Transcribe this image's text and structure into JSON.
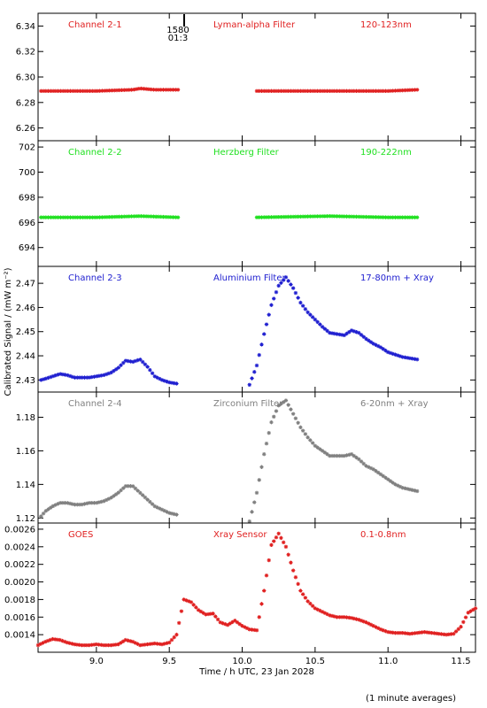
{
  "ylabel": "Calibrated Signal / (mW m⁻²)",
  "xlabel": "Time / h UTC, 23 Jan 2028",
  "footnote": "(1 minute averages)",
  "marker": {
    "top": "1580",
    "bottom": "01:3",
    "x": 9.6
  },
  "chart_data": {
    "type": "scatter",
    "xlim": [
      8.6,
      11.6
    ],
    "xticks": [
      9.0,
      9.5,
      10.0,
      10.5,
      11.0,
      11.5
    ],
    "xtick_labels": [
      "9.0",
      "9.5",
      "10.0",
      "10.5",
      "11.0",
      "11.5"
    ],
    "panels": [
      {
        "name": "Channel 2-1",
        "filter": "Lyman-alpha Filter",
        "band": "120-123nm",
        "color": "#e02020",
        "ylim": [
          6.25,
          6.35
        ],
        "yticks": [
          "6.26",
          "6.28",
          "6.30",
          "6.32",
          "6.34"
        ],
        "series": [
          {
            "x": [
              8.62,
              9.0,
              9.25,
              9.3,
              9.4,
              9.56
            ],
            "y": [
              6.289,
              6.289,
              6.29,
              6.291,
              6.29,
              6.29
            ]
          },
          {
            "x": [
              10.1,
              10.5,
              11.0,
              11.2
            ],
            "y": [
              6.289,
              6.289,
              6.289,
              6.29
            ]
          }
        ]
      },
      {
        "name": "Channel 2-2",
        "filter": "Herzberg Filter",
        "band": "190-222nm",
        "color": "#20e020",
        "ylim": [
          692.5,
          702.5
        ],
        "yticks": [
          "694",
          "696",
          "698",
          "700",
          "702"
        ],
        "series": [
          {
            "x": [
              8.62,
              9.0,
              9.3,
              9.56
            ],
            "y": [
              696.4,
              696.4,
              696.5,
              696.4
            ]
          },
          {
            "x": [
              10.1,
              10.6,
              11.0,
              11.2
            ],
            "y": [
              696.4,
              696.5,
              696.4,
              696.4
            ]
          }
        ]
      },
      {
        "name": "Channel 2-3",
        "filter": "Aluminium Filter",
        "band": "17-80nm + Xray",
        "color": "#2020d0",
        "ylim": [
          2.425,
          2.477
        ],
        "yticks": [
          "2.43",
          "2.44",
          "2.45",
          "2.46",
          "2.47"
        ],
        "series": [
          {
            "x": [
              8.62,
              8.65,
              8.7,
              8.75,
              8.8,
              8.85,
              8.9,
              8.95,
              9.0,
              9.05,
              9.1,
              9.15,
              9.2,
              9.25,
              9.3,
              9.35,
              9.4,
              9.45,
              9.5,
              9.55
            ],
            "y": [
              2.43,
              2.4305,
              2.4315,
              2.4325,
              2.432,
              2.431,
              2.431,
              2.431,
              2.4315,
              2.432,
              2.433,
              2.435,
              2.438,
              2.4375,
              2.4385,
              2.4355,
              2.4315,
              2.43,
              2.429,
              2.4285
            ]
          },
          {
            "x": [
              10.05,
              10.1,
              10.15,
              10.2,
              10.25,
              10.3,
              10.35,
              10.4,
              10.45,
              10.5,
              10.55,
              10.6,
              10.65,
              10.7,
              10.75,
              10.8,
              10.85,
              10.9,
              10.95,
              11.0,
              11.05,
              11.1,
              11.15,
              11.2
            ],
            "y": [
              2.428,
              2.436,
              2.449,
              2.461,
              2.469,
              2.4725,
              2.468,
              2.462,
              2.458,
              2.455,
              2.452,
              2.4495,
              2.449,
              2.4485,
              2.4505,
              2.4495,
              2.447,
              2.445,
              2.4435,
              2.4415,
              2.4405,
              2.4395,
              2.439,
              2.4385
            ]
          }
        ]
      },
      {
        "name": "Channel 2-4",
        "filter": "Zirconium Filter",
        "band": "6-20nm + Xray",
        "color": "#808080",
        "ylim": [
          1.117,
          1.195
        ],
        "yticks": [
          "1.12",
          "1.14",
          "1.16",
          "1.18"
        ],
        "series": [
          {
            "x": [
              8.62,
              8.65,
              8.7,
              8.75,
              8.8,
              8.85,
              8.9,
              8.95,
              9.0,
              9.05,
              9.1,
              9.15,
              9.2,
              9.25,
              9.3,
              9.35,
              9.4,
              9.45,
              9.5,
              9.55
            ],
            "y": [
              1.121,
              1.124,
              1.127,
              1.129,
              1.129,
              1.128,
              1.128,
              1.129,
              1.129,
              1.13,
              1.132,
              1.135,
              1.139,
              1.139,
              1.135,
              1.131,
              1.127,
              1.125,
              1.123,
              1.122
            ]
          },
          {
            "x": [
              10.05,
              10.1,
              10.15,
              10.2,
              10.25,
              10.3,
              10.35,
              10.4,
              10.45,
              10.5,
              10.55,
              10.6,
              10.65,
              10.7,
              10.75,
              10.8,
              10.85,
              10.9,
              10.95,
              11.0,
              11.05,
              11.1,
              11.15,
              11.2
            ],
            "y": [
              1.118,
              1.135,
              1.158,
              1.177,
              1.187,
              1.19,
              1.182,
              1.174,
              1.168,
              1.163,
              1.16,
              1.157,
              1.157,
              1.157,
              1.158,
              1.155,
              1.151,
              1.149,
              1.146,
              1.143,
              1.14,
              1.138,
              1.137,
              1.136
            ]
          }
        ]
      },
      {
        "name": "GOES",
        "filter": "Xray Sensor",
        "band": "0.1-0.8nm",
        "color": "#e02020",
        "ylim": [
          0.0012,
          0.00267
        ],
        "yticks": [
          "0.0014",
          "0.0016",
          "0.0018",
          "0.0020",
          "0.0022",
          "0.0024",
          "0.0026"
        ],
        "series": [
          {
            "x": [
              8.6,
              8.65,
              8.7,
              8.75,
              8.8,
              8.85,
              8.9,
              8.95,
              9.0,
              9.05,
              9.1,
              9.15,
              9.2,
              9.25,
              9.3,
              9.35,
              9.4,
              9.45,
              9.5,
              9.55,
              9.6,
              9.65,
              9.7,
              9.75,
              9.8,
              9.85,
              9.9,
              9.95,
              10.0,
              10.05,
              10.1,
              10.15,
              10.2,
              10.25,
              10.3,
              10.35,
              10.4,
              10.45,
              10.5,
              10.55,
              10.6,
              10.65,
              10.7,
              10.75,
              10.8,
              10.85,
              10.9,
              10.95,
              11.0,
              11.05,
              11.1,
              11.15,
              11.2,
              11.25,
              11.3,
              11.35,
              11.4,
              11.45,
              11.5,
              11.55,
              11.6
            ],
            "y": [
              0.00128,
              0.00132,
              0.00135,
              0.00134,
              0.00131,
              0.00129,
              0.00128,
              0.00128,
              0.00129,
              0.00128,
              0.00128,
              0.00129,
              0.00134,
              0.00132,
              0.00128,
              0.00129,
              0.0013,
              0.00129,
              0.00131,
              0.0014,
              0.0018,
              0.00177,
              0.00168,
              0.00163,
              0.00164,
              0.00154,
              0.00151,
              0.00156,
              0.0015,
              0.00146,
              0.00145,
              0.0019,
              0.00242,
              0.00255,
              0.0024,
              0.00213,
              0.0019,
              0.00178,
              0.0017,
              0.00166,
              0.00162,
              0.0016,
              0.0016,
              0.00159,
              0.00157,
              0.00154,
              0.0015,
              0.00146,
              0.00143,
              0.00142,
              0.00142,
              0.00141,
              0.00142,
              0.00143,
              0.00142,
              0.00141,
              0.0014,
              0.00141,
              0.00149,
              0.00165,
              0.0017
            ]
          }
        ]
      }
    ]
  }
}
